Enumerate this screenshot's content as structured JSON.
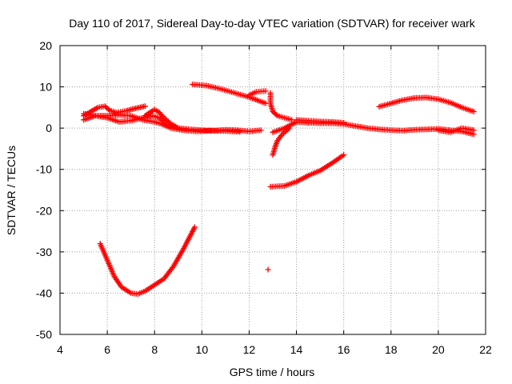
{
  "chart_data": {
    "type": "scatter",
    "title": "Day 110 of 2017, Sidereal Day-to-day VTEC variation (SDTVAR) for receiver wark",
    "xlabel": "GPS time / hours",
    "ylabel": "SDTVAR / TECUs",
    "xlim": [
      4,
      22
    ],
    "ylim": [
      -50,
      20
    ],
    "xticks": [
      "4",
      "6",
      "8",
      "10",
      "12",
      "14",
      "16",
      "18",
      "20",
      "22"
    ],
    "yticks": [
      "20",
      "10",
      "0",
      "-10",
      "-20",
      "-30",
      "-40",
      "-50"
    ],
    "grid": true,
    "marker": "+",
    "color": "#ff0000",
    "series": [
      {
        "name": "arc-a-upper",
        "points": [
          [
            5.0,
            3.0
          ],
          [
            5.3,
            4.0
          ],
          [
            5.6,
            5.0
          ],
          [
            5.9,
            5.3
          ],
          [
            6.1,
            4.3
          ],
          [
            6.4,
            3.8
          ],
          [
            6.8,
            4.2
          ],
          [
            7.2,
            4.8
          ],
          [
            7.6,
            5.3
          ]
        ]
      },
      {
        "name": "arc-a-lower",
        "points": [
          [
            5.0,
            2.0
          ],
          [
            5.5,
            3.0
          ],
          [
            6.0,
            2.5
          ],
          [
            6.5,
            1.5
          ],
          [
            7.0,
            1.8
          ],
          [
            7.5,
            2.5
          ],
          [
            7.9,
            3.0
          ],
          [
            8.2,
            2.5
          ],
          [
            8.5,
            1.0
          ],
          [
            9.0,
            0.0
          ],
          [
            9.5,
            -0.3
          ],
          [
            10.0,
            -0.5
          ],
          [
            10.5,
            -0.6
          ],
          [
            11.0,
            -0.4
          ],
          [
            11.5,
            -0.5
          ],
          [
            12.0,
            -0.8
          ],
          [
            12.5,
            -0.5
          ]
        ]
      },
      {
        "name": "arc-b-band",
        "points": [
          [
            5.0,
            3.5
          ],
          [
            5.5,
            3.0
          ],
          [
            6.0,
            3.0
          ],
          [
            6.5,
            3.2
          ],
          [
            7.0,
            3.0
          ],
          [
            7.5,
            2.0
          ],
          [
            8.0,
            1.5
          ],
          [
            8.3,
            1.0
          ],
          [
            8.7,
            0.0
          ],
          [
            9.2,
            -0.5
          ],
          [
            9.8,
            -0.8
          ],
          [
            10.4,
            -0.6
          ],
          [
            11.0,
            -0.7
          ],
          [
            11.6,
            -0.9
          ]
        ]
      },
      {
        "name": "arc-c-bump",
        "points": [
          [
            7.6,
            3.0
          ],
          [
            7.8,
            3.8
          ],
          [
            8.0,
            4.5
          ],
          [
            8.2,
            3.8
          ],
          [
            8.4,
            2.5
          ],
          [
            8.7,
            1.0
          ],
          [
            9.0,
            0.0
          ]
        ]
      },
      {
        "name": "arc-d",
        "points": [
          [
            9.6,
            10.6
          ],
          [
            10.2,
            10.3
          ],
          [
            10.8,
            9.5
          ],
          [
            11.4,
            8.5
          ],
          [
            12.0,
            7.5
          ],
          [
            12.7,
            6.0
          ]
        ]
      },
      {
        "name": "arc-e",
        "points": [
          [
            12.0,
            8.0
          ],
          [
            12.3,
            8.8
          ],
          [
            12.7,
            9.0
          ]
        ]
      },
      {
        "name": "arc-f-vertical",
        "points": [
          [
            12.9,
            8.5
          ],
          [
            12.9,
            6.0
          ],
          [
            13.0,
            4.0
          ],
          [
            13.2,
            3.0
          ],
          [
            13.5,
            2.5
          ],
          [
            13.8,
            2.0
          ]
        ]
      },
      {
        "name": "arc-g",
        "points": [
          [
            13.0,
            -6.5
          ],
          [
            13.1,
            -4.5
          ],
          [
            13.2,
            -3.0
          ],
          [
            13.4,
            -1.5
          ],
          [
            13.7,
            0.0
          ]
        ]
      },
      {
        "name": "arc-h-mid",
        "points": [
          [
            13.0,
            -1.0
          ],
          [
            13.5,
            0.0
          ],
          [
            14.0,
            1.5
          ],
          [
            14.5,
            1.3
          ],
          [
            15.0,
            1.2
          ],
          [
            15.5,
            1.2
          ],
          [
            16.0,
            1.0
          ],
          [
            16.5,
            0.5
          ],
          [
            17.0,
            0.0
          ],
          [
            17.5,
            -0.3
          ],
          [
            18.0,
            -0.5
          ],
          [
            18.5,
            -0.6
          ],
          [
            19.0,
            -0.4
          ],
          [
            19.5,
            -0.3
          ],
          [
            20.0,
            -0.2
          ],
          [
            20.5,
            -0.5
          ],
          [
            21.0,
            -0.8
          ],
          [
            21.5,
            -1.5
          ]
        ]
      },
      {
        "name": "arc-h-upper",
        "points": [
          [
            14.0,
            2.0
          ],
          [
            14.5,
            1.8
          ],
          [
            15.0,
            1.6
          ],
          [
            15.5,
            1.5
          ],
          [
            16.0,
            1.3
          ]
        ]
      },
      {
        "name": "arc-i",
        "points": [
          [
            12.9,
            -14.2
          ],
          [
            13.5,
            -14.0
          ],
          [
            14.0,
            -13.0
          ],
          [
            14.5,
            -11.5
          ],
          [
            15.0,
            -10.3
          ],
          [
            15.5,
            -8.5
          ],
          [
            16.0,
            -6.5
          ]
        ]
      },
      {
        "name": "arc-j",
        "points": [
          [
            17.5,
            5.2
          ],
          [
            18.0,
            6.0
          ],
          [
            18.5,
            6.8
          ],
          [
            19.0,
            7.3
          ],
          [
            19.5,
            7.4
          ],
          [
            20.0,
            7.0
          ],
          [
            20.5,
            6.2
          ],
          [
            21.0,
            5.0
          ],
          [
            21.5,
            4.0
          ]
        ]
      },
      {
        "name": "arc-k",
        "points": [
          [
            20.0,
            -0.5
          ],
          [
            20.5,
            -1.0
          ],
          [
            21.0,
            0.0
          ],
          [
            21.5,
            -0.5
          ]
        ]
      },
      {
        "name": "arc-l-u",
        "points": [
          [
            5.7,
            -28.0
          ],
          [
            6.0,
            -32.0
          ],
          [
            6.3,
            -36.0
          ],
          [
            6.6,
            -38.5
          ],
          [
            7.0,
            -40.0
          ],
          [
            7.3,
            -40.2
          ],
          [
            7.6,
            -39.5
          ],
          [
            8.0,
            -38.0
          ],
          [
            8.4,
            -36.5
          ],
          [
            8.8,
            -33.5
          ],
          [
            9.2,
            -29.5
          ],
          [
            9.7,
            -24.0
          ]
        ]
      },
      {
        "name": "point-isolated",
        "points": [
          [
            12.8,
            -34.3
          ]
        ]
      }
    ]
  }
}
